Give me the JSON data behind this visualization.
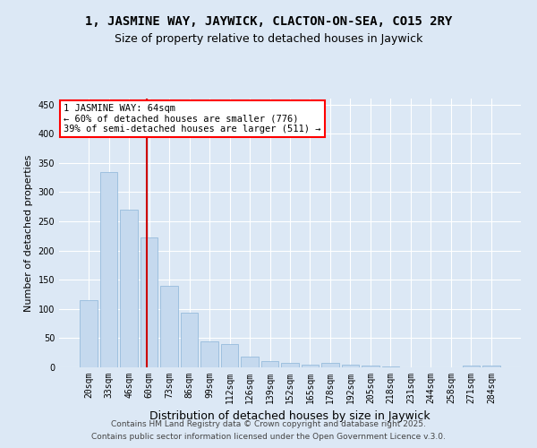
{
  "title1": "1, JASMINE WAY, JAYWICK, CLACTON-ON-SEA, CO15 2RY",
  "title2": "Size of property relative to detached houses in Jaywick",
  "xlabel": "Distribution of detached houses by size in Jaywick",
  "ylabel": "Number of detached properties",
  "categories": [
    "20sqm",
    "33sqm",
    "46sqm",
    "60sqm",
    "73sqm",
    "86sqm",
    "99sqm",
    "112sqm",
    "126sqm",
    "139sqm",
    "152sqm",
    "165sqm",
    "178sqm",
    "192sqm",
    "205sqm",
    "218sqm",
    "231sqm",
    "244sqm",
    "258sqm",
    "271sqm",
    "284sqm"
  ],
  "values": [
    115,
    335,
    270,
    222,
    140,
    93,
    44,
    40,
    19,
    10,
    7,
    5,
    8,
    5,
    3,
    1,
    0,
    0,
    0,
    3,
    3
  ],
  "bar_color": "#c5d9ee",
  "bar_edge_color": "#8ab4d8",
  "bar_width": 0.85,
  "vline_x": 2.9,
  "vline_color": "#cc0000",
  "ylim": [
    0,
    460
  ],
  "yticks": [
    0,
    50,
    100,
    150,
    200,
    250,
    300,
    350,
    400,
    450
  ],
  "annotation_text": "1 JASMINE WAY: 64sqm\n← 60% of detached houses are smaller (776)\n39% of semi-detached houses are larger (511) →",
  "bg_color": "#dce8f5",
  "plot_bg_color": "#dce8f5",
  "grid_color": "#ffffff",
  "footer1": "Contains HM Land Registry data © Crown copyright and database right 2025.",
  "footer2": "Contains public sector information licensed under the Open Government Licence v.3.0.",
  "title1_fontsize": 10,
  "title2_fontsize": 9,
  "xlabel_fontsize": 9,
  "ylabel_fontsize": 8,
  "tick_fontsize": 7,
  "annot_fontsize": 7.5,
  "footer_fontsize": 6.5
}
